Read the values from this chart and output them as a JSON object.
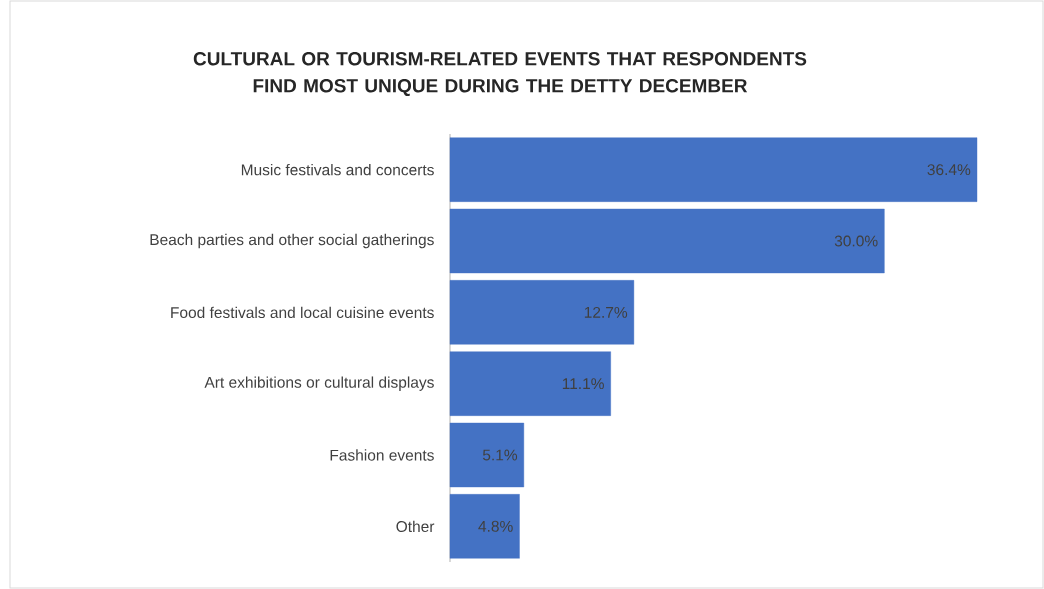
{
  "chart_data": {
    "type": "bar",
    "orientation": "horizontal",
    "title": "CULTURAL OR TOURISM-RELATED EVENTS THAT RESPONDENTS FIND MOST UNIQUE DURING THE DETTY DECEMBER",
    "categories": [
      "Music festivals and concerts",
      "Beach parties and other social gatherings",
      "Food festivals and local cuisine events",
      "Art exhibitions or cultural displays",
      "Fashion events",
      "Other"
    ],
    "values": [
      36.4,
      30.0,
      12.7,
      11.1,
      5.1,
      4.8
    ],
    "value_labels": [
      "36.4%",
      "30.0%",
      "12.7%",
      "11.1%",
      "5.1%",
      "4.8%"
    ],
    "color": "#4472c4"
  }
}
